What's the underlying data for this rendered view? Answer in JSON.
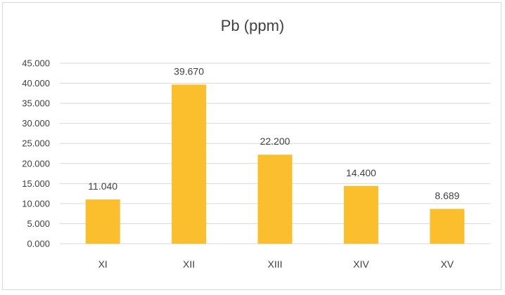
{
  "chart_data": {
    "type": "bar",
    "title": "Pb (ppm)",
    "categories": [
      "XI",
      "XII",
      "XIII",
      "XIV",
      "XV"
    ],
    "values": [
      11.04,
      39.67,
      22.2,
      14.4,
      8.689
    ],
    "data_labels": [
      "11.040",
      "39.670",
      "22.200",
      "14.400",
      "8.689"
    ],
    "y_ticks": [
      "0.000",
      "5.000",
      "10.000",
      "15.000",
      "20.000",
      "25.000",
      "30.000",
      "35.000",
      "40.000",
      "45.000"
    ],
    "ylim": [
      0,
      45
    ],
    "grid": true,
    "legend": "none",
    "bar_color": "#FBBF2E",
    "grid_color": "#d9d9d9",
    "text_color": "#404040"
  }
}
